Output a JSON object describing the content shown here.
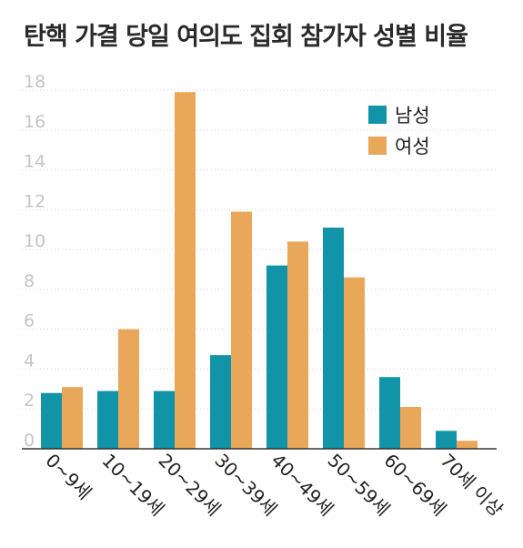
{
  "chart_data": {
    "type": "bar",
    "title": "탄핵 가결 당일 여의도 집회 참가자 성별 비율",
    "categories": [
      "0~9세",
      "10~19세",
      "20~29세",
      "30~39세",
      "40~49세",
      "50~59세",
      "60~69세",
      "70세 이상"
    ],
    "series": [
      {
        "name": "남성",
        "color": "#1193a8",
        "values": [
          2.8,
          2.9,
          2.9,
          4.7,
          9.2,
          11.1,
          3.6,
          0.9
        ]
      },
      {
        "name": "여성",
        "color": "#e9a75a",
        "values": [
          3.1,
          6.0,
          17.9,
          11.9,
          10.4,
          8.6,
          2.1,
          0.4
        ]
      }
    ],
    "ylim": [
      0,
      18
    ],
    "yticks": [
      0,
      2,
      4,
      6,
      8,
      10,
      12,
      14,
      16,
      18
    ],
    "xlabel": "",
    "ylabel": "",
    "grid": true,
    "legend": "top-right"
  }
}
